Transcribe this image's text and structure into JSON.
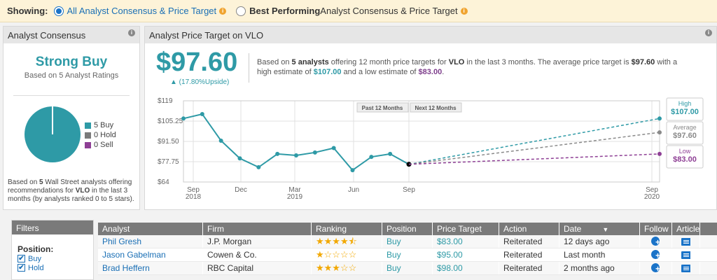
{
  "showing": {
    "label": "Showing:",
    "option1": "All Analyst Consensus & Price Target",
    "option2_bold": "Best Performing",
    "option2_rest": " Analyst Consensus & Price Target",
    "selected": 1
  },
  "consensus": {
    "title": "Analyst Consensus",
    "rating": "Strong Buy",
    "based_on": "Based on 5 Analyst Ratings",
    "legend": [
      {
        "label": "5 Buy",
        "color": "#2e9aa6"
      },
      {
        "label": "0 Hold",
        "color": "#7a7a7a"
      },
      {
        "label": "0 Sell",
        "color": "#8e3f95"
      }
    ],
    "foot_pre": "Based on ",
    "foot_num": "5",
    "foot_mid": " Wall Street analysts offering recommendations for ",
    "foot_ticker": "VLO",
    "foot_post": " in the last 3 months (by analysts ranked 0 to 5 stars)."
  },
  "price_target": {
    "title": "Analyst Price Target on VLO",
    "price": "$97.60",
    "upside": "▲ (17.80%Upside)",
    "desc_1": "Based on ",
    "desc_analysts": "5 analysts",
    "desc_2": " offering 12 month price targets for ",
    "desc_ticker": "VLO",
    "desc_3": " in the last 3 months. The average price target is ",
    "desc_avg": "$97.60",
    "desc_4": " with a high estimate of ",
    "desc_high": "$107.00",
    "desc_5": " and a low estimate of ",
    "desc_low": "$83.00",
    "desc_6": "."
  },
  "chart_data": {
    "type": "line",
    "y_ticks": [
      "$119",
      "$105.25",
      "$91.50",
      "$77.75",
      "$64"
    ],
    "ylim": [
      64,
      119
    ],
    "x_ticks": [
      {
        "label": "Sep",
        "sub": "2018"
      },
      {
        "label": "Dec",
        "sub": ""
      },
      {
        "label": "Mar",
        "sub": "2019"
      },
      {
        "label": "Jun",
        "sub": ""
      },
      {
        "label": "Sep",
        "sub": ""
      },
      {
        "label": "Sep",
        "sub": "2020"
      }
    ],
    "past_label": "Past 12 Months",
    "next_label": "Next 12 Months",
    "history": [
      107,
      110,
      92,
      80,
      74,
      83,
      82,
      84,
      87,
      72,
      81,
      83,
      76
    ],
    "current": 76,
    "targets": [
      {
        "name": "High",
        "value": 107.0,
        "label": "$107.00",
        "color": "#2e9aa6"
      },
      {
        "name": "Average",
        "value": 97.6,
        "label": "$97.60",
        "color": "#8a8a8a"
      },
      {
        "name": "Low",
        "value": 83.0,
        "label": "$83.00",
        "color": "#8e3f95"
      }
    ]
  },
  "filters": {
    "title": "Filters",
    "position_label": "Position:",
    "items": [
      "Buy",
      "Hold"
    ]
  },
  "table": {
    "headers": [
      "Analyst",
      "Firm",
      "Ranking",
      "Position",
      "Price Target",
      "Action",
      "Date",
      "Follow",
      "Article"
    ],
    "rows": [
      {
        "analyst": "Phil Gresh",
        "firm": "J.P. Morgan",
        "stars": 4.5,
        "position": "Buy",
        "price": "$83.00",
        "action": "Reiterated",
        "date": "12 days ago"
      },
      {
        "analyst": "Jason Gabelman",
        "firm": "Cowen & Co.",
        "stars": 1,
        "position": "Buy",
        "price": "$95.00",
        "action": "Reiterated",
        "date": "Last month"
      },
      {
        "analyst": "Brad Heffern",
        "firm": "RBC Capital",
        "stars": 3,
        "position": "Buy",
        "price": "$98.00",
        "action": "Reiterated",
        "date": "2 months ago"
      }
    ]
  }
}
